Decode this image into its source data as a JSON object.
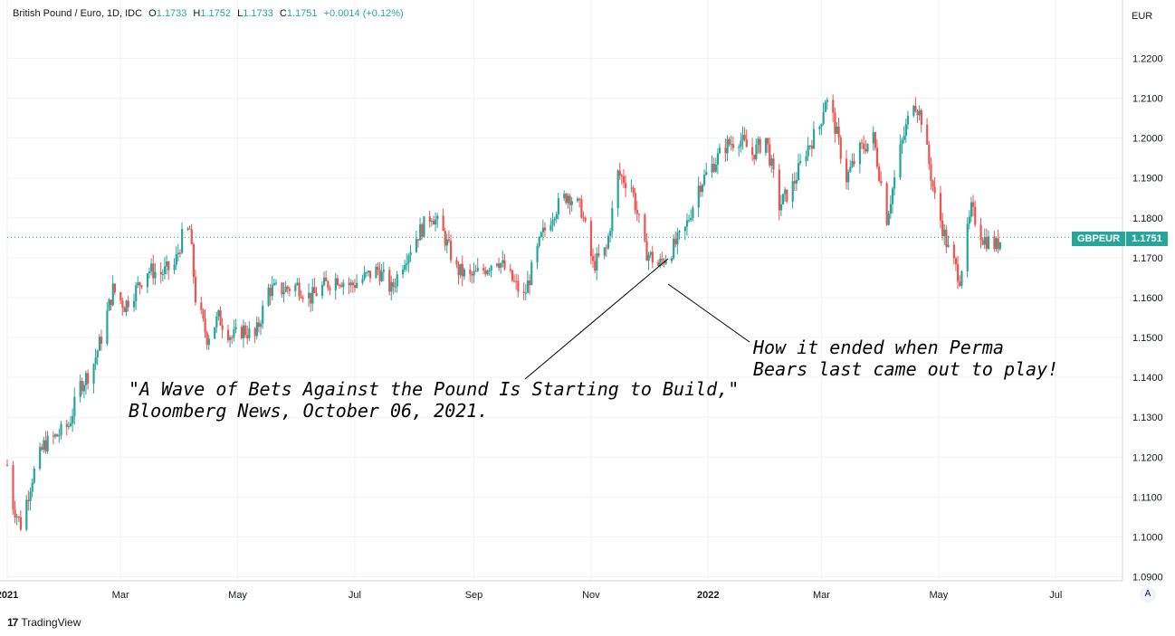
{
  "legend": {
    "symbol": "British Pound / Euro, 1D, IDC",
    "open_label": "O",
    "open": "1.1733",
    "high_label": "H",
    "high": "1.1752",
    "low_label": "L",
    "low": "1.1733",
    "close_label": "C",
    "close": "1.1751",
    "change": "+0.0014 (+0.12%)"
  },
  "currency": "EUR",
  "price_badge": {
    "ticker": "GBPEUR",
    "price": "1.1751"
  },
  "annotations": {
    "left_line1": "\"A Wave of Bets Against the Pound Is Starting to Build,\"",
    "left_line2": "Bloomberg News, October 06, 2021.",
    "right_line1": "How it ended when Perma",
    "right_line2": "Bears last came out to play!"
  },
  "footer": {
    "logo": "17",
    "brand": "TradingView"
  },
  "auto_scale_button": "A",
  "colors": {
    "up": "#26a69a",
    "down": "#ef5350",
    "grid": "#f0f3fa",
    "axis_text": "#131722"
  },
  "chart_data": {
    "type": "candlestick",
    "title": "British Pound / Euro, 1D, IDC",
    "ylabel": "EUR",
    "ylim": [
      1.09,
      1.22
    ],
    "y_ticks": [
      "1.0900",
      "1.1000",
      "1.1100",
      "1.1200",
      "1.1300",
      "1.1400",
      "1.1500",
      "1.1600",
      "1.1700",
      "1.1800",
      "1.1900",
      "1.2000",
      "1.2100",
      "1.2200"
    ],
    "x_ticks": [
      {
        "label": "2021",
        "date": "2021-01-01"
      },
      {
        "label": "Mar",
        "date": "2021-03-01"
      },
      {
        "label": "May",
        "date": "2021-05-01"
      },
      {
        "label": "Jul",
        "date": "2021-07-01"
      },
      {
        "label": "Sep",
        "date": "2021-09-01"
      },
      {
        "label": "Nov",
        "date": "2021-11-01"
      },
      {
        "label": "2022",
        "date": "2022-01-01"
      },
      {
        "label": "Mar",
        "date": "2022-03-01"
      },
      {
        "label": "May",
        "date": "2022-05-01"
      },
      {
        "label": "Jul",
        "date": "2022-07-01"
      }
    ],
    "xlim": [
      "2021-01-01",
      "2022-08-01"
    ],
    "last_price": 1.1751,
    "series": [
      {
        "date": "2021-01-01",
        "close": 1.118
      },
      {
        "date": "2021-01-04",
        "close": 1.108
      },
      {
        "date": "2021-01-08",
        "close": 1.103
      },
      {
        "date": "2021-01-14",
        "close": 1.115
      },
      {
        "date": "2021-01-20",
        "close": 1.123
      },
      {
        "date": "2021-01-26",
        "close": 1.125
      },
      {
        "date": "2021-02-02",
        "close": 1.128
      },
      {
        "date": "2021-02-08",
        "close": 1.138
      },
      {
        "date": "2021-02-14",
        "close": 1.142
      },
      {
        "date": "2021-02-19",
        "close": 1.15
      },
      {
        "date": "2021-02-25",
        "close": 1.162
      },
      {
        "date": "2021-03-03",
        "close": 1.158
      },
      {
        "date": "2021-03-09",
        "close": 1.162
      },
      {
        "date": "2021-03-15",
        "close": 1.167
      },
      {
        "date": "2021-03-22",
        "close": 1.166
      },
      {
        "date": "2021-03-29",
        "close": 1.168
      },
      {
        "date": "2021-04-02",
        "close": 1.175
      },
      {
        "date": "2021-04-06",
        "close": 1.177
      },
      {
        "date": "2021-04-09",
        "close": 1.16
      },
      {
        "date": "2021-04-15",
        "close": 1.15
      },
      {
        "date": "2021-04-21",
        "close": 1.155
      },
      {
        "date": "2021-04-28",
        "close": 1.15
      },
      {
        "date": "2021-05-04",
        "close": 1.152
      },
      {
        "date": "2021-05-10",
        "close": 1.15
      },
      {
        "date": "2021-05-17",
        "close": 1.162
      },
      {
        "date": "2021-05-24",
        "close": 1.162
      },
      {
        "date": "2021-06-01",
        "close": 1.163
      },
      {
        "date": "2021-06-08",
        "close": 1.16
      },
      {
        "date": "2021-06-15",
        "close": 1.163
      },
      {
        "date": "2021-06-22",
        "close": 1.165
      },
      {
        "date": "2021-06-29",
        "close": 1.163
      },
      {
        "date": "2021-07-06",
        "close": 1.165
      },
      {
        "date": "2021-07-13",
        "close": 1.167
      },
      {
        "date": "2021-07-20",
        "close": 1.162
      },
      {
        "date": "2021-07-27",
        "close": 1.17
      },
      {
        "date": "2021-08-03",
        "close": 1.176
      },
      {
        "date": "2021-08-10",
        "close": 1.181
      },
      {
        "date": "2021-08-16",
        "close": 1.176
      },
      {
        "date": "2021-08-23",
        "close": 1.167
      },
      {
        "date": "2021-08-30",
        "close": 1.165
      },
      {
        "date": "2021-09-06",
        "close": 1.167
      },
      {
        "date": "2021-09-13",
        "close": 1.17
      },
      {
        "date": "2021-09-20",
        "close": 1.165
      },
      {
        "date": "2021-09-27",
        "close": 1.16
      },
      {
        "date": "2021-10-06",
        "close": 1.175
      },
      {
        "date": "2021-10-13",
        "close": 1.182
      },
      {
        "date": "2021-10-20",
        "close": 1.186
      },
      {
        "date": "2021-10-27",
        "close": 1.182
      },
      {
        "date": "2021-11-02",
        "close": 1.168
      },
      {
        "date": "2021-11-09",
        "close": 1.172
      },
      {
        "date": "2021-11-15",
        "close": 1.191
      },
      {
        "date": "2021-11-22",
        "close": 1.188
      },
      {
        "date": "2021-11-29",
        "close": 1.172
      },
      {
        "date": "2021-12-06",
        "close": 1.168
      },
      {
        "date": "2021-12-13",
        "close": 1.172
      },
      {
        "date": "2021-12-20",
        "close": 1.177
      },
      {
        "date": "2021-12-27",
        "close": 1.188
      },
      {
        "date": "2022-01-03",
        "close": 1.193
      },
      {
        "date": "2022-01-10",
        "close": 1.198
      },
      {
        "date": "2022-01-17",
        "close": 1.2
      },
      {
        "date": "2022-01-24",
        "close": 1.196
      },
      {
        "date": "2022-01-31",
        "close": 1.2
      },
      {
        "date": "2022-02-07",
        "close": 1.183
      },
      {
        "date": "2022-02-14",
        "close": 1.188
      },
      {
        "date": "2022-02-21",
        "close": 1.197
      },
      {
        "date": "2022-02-28",
        "close": 1.203
      },
      {
        "date": "2022-03-03",
        "close": 1.21
      },
      {
        "date": "2022-03-07",
        "close": 1.205
      },
      {
        "date": "2022-03-14",
        "close": 1.19
      },
      {
        "date": "2022-03-21",
        "close": 1.197
      },
      {
        "date": "2022-03-28",
        "close": 1.2
      },
      {
        "date": "2022-04-04",
        "close": 1.18
      },
      {
        "date": "2022-04-11",
        "close": 1.197
      },
      {
        "date": "2022-04-18",
        "close": 1.21
      },
      {
        "date": "2022-04-22",
        "close": 1.205
      },
      {
        "date": "2022-04-29",
        "close": 1.185
      },
      {
        "date": "2022-05-06",
        "close": 1.172
      },
      {
        "date": "2022-05-12",
        "close": 1.165
      },
      {
        "date": "2022-05-18",
        "close": 1.182
      },
      {
        "date": "2022-05-24",
        "close": 1.175
      },
      {
        "date": "2022-05-31",
        "close": 1.173
      },
      {
        "date": "2022-06-03",
        "close": 1.1751
      }
    ]
  }
}
